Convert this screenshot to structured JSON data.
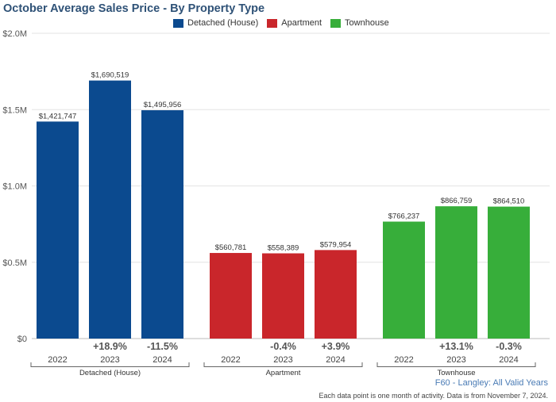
{
  "chart_data": {
    "type": "bar",
    "title": "October Average Sales Price - By Property Type",
    "legend": [
      "Detached (House)",
      "Apartment",
      "Townhouse"
    ],
    "legend_position": "top",
    "colors": {
      "Detached (House)": "#0b4a8f",
      "Apartment": "#c9262b",
      "Townhouse": "#37ae3a"
    },
    "ylim": [
      0,
      2000000
    ],
    "yticks": [
      {
        "value": 0,
        "label": "$0"
      },
      {
        "value": 500000,
        "label": "$0.5M"
      },
      {
        "value": 1000000,
        "label": "$1.0M"
      },
      {
        "value": 1500000,
        "label": "$1.5M"
      },
      {
        "value": 2000000,
        "label": "$2.0M"
      }
    ],
    "grid": true,
    "groups": [
      {
        "name": "Detached (House)",
        "categories": [
          "2022",
          "2023",
          "2024"
        ],
        "values": [
          1421747,
          1690519,
          1495956
        ],
        "value_labels": [
          "$1,421,747",
          "$1,690,519",
          "$1,495,956"
        ],
        "changes": [
          "",
          "+18.9%",
          "-11.5%"
        ]
      },
      {
        "name": "Apartment",
        "categories": [
          "2022",
          "2023",
          "2024"
        ],
        "values": [
          560781,
          558389,
          579954
        ],
        "value_labels": [
          "$560,781",
          "$558,389",
          "$579,954"
        ],
        "changes": [
          "",
          "-0.4%",
          "+3.9%"
        ]
      },
      {
        "name": "Townhouse",
        "categories": [
          "2022",
          "2023",
          "2024"
        ],
        "values": [
          766237,
          866759,
          864510
        ],
        "value_labels": [
          "$766,237",
          "$866,759",
          "$864,510"
        ],
        "changes": [
          "",
          "+13.1%",
          "-0.3%"
        ]
      }
    ]
  },
  "footer": {
    "source": "F60 - Langley: All Valid Years",
    "note": "Each data point is one month of activity. Data is from November 7, 2024."
  }
}
